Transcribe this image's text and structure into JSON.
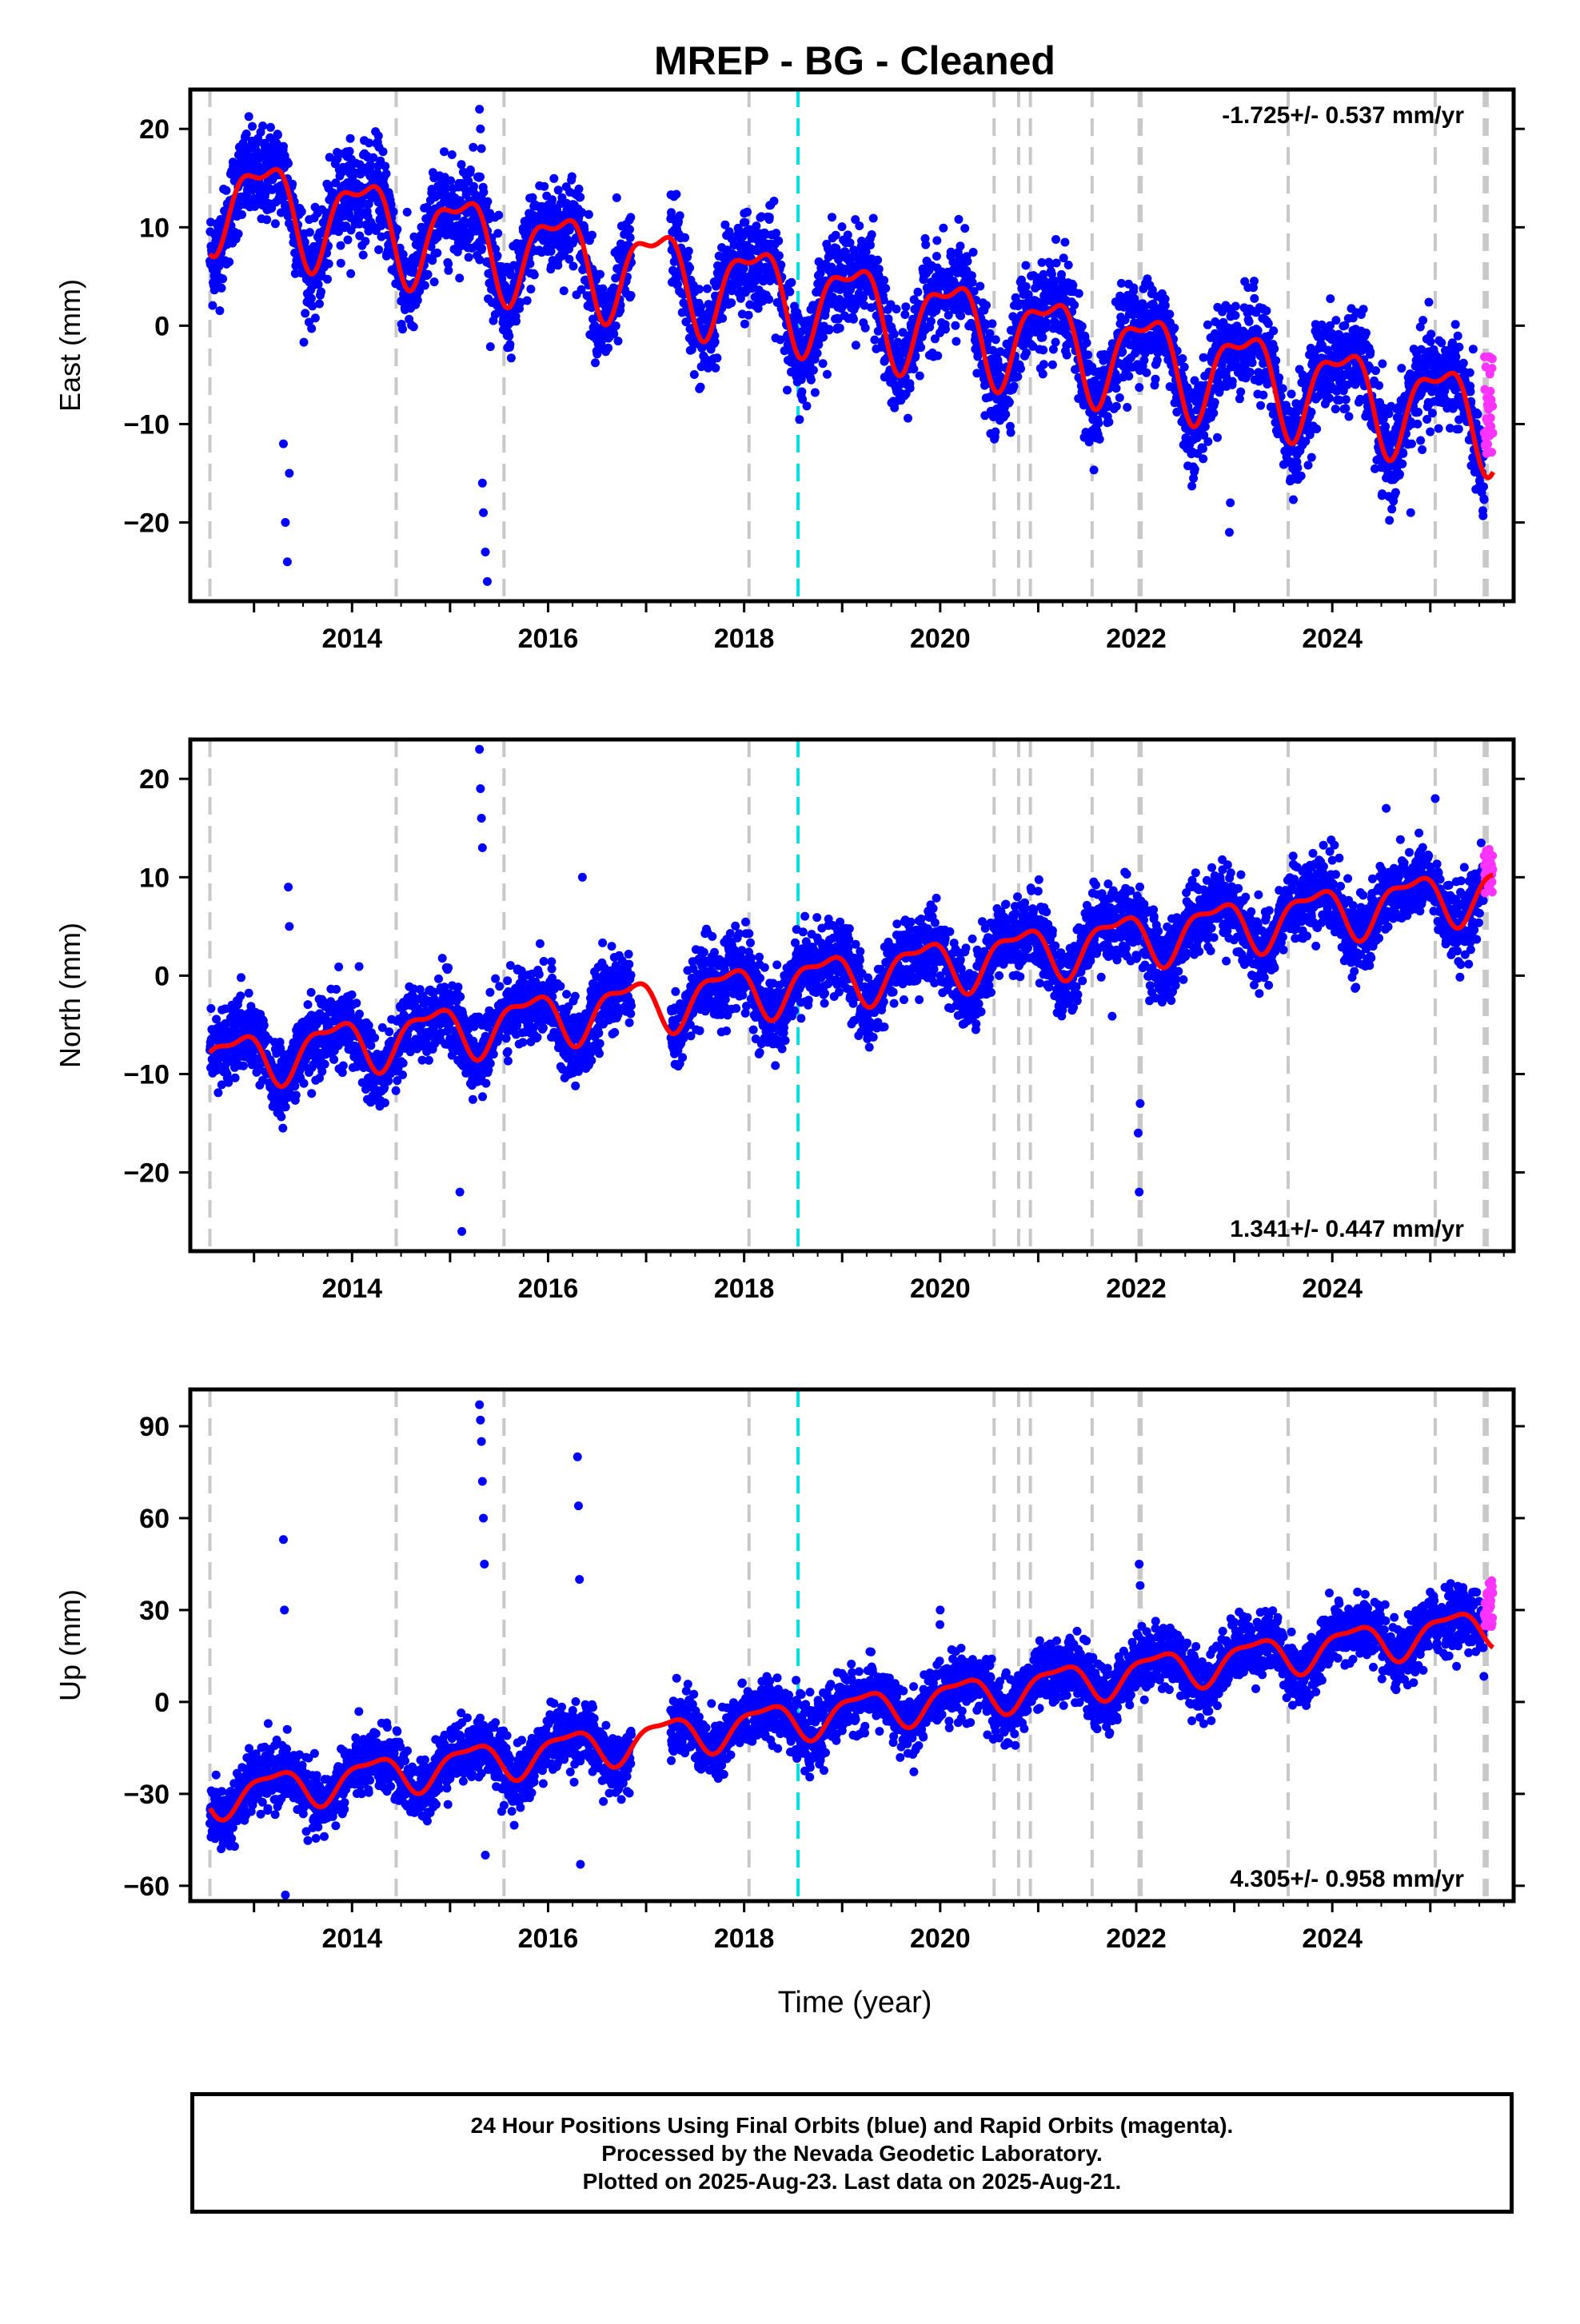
{
  "title": "MREP  - BG - Cleaned",
  "xlabel": "Time (year)",
  "x_ticks": [
    "2014",
    "2016",
    "2018",
    "2020",
    "2022",
    "2024"
  ],
  "footer": {
    "line1": "24 Hour Positions Using Final Orbits (blue) and Rapid Orbits (magenta).",
    "line2": "Processed by the Nevada Geodetic Laboratory.",
    "line3": "Plotted on 2025-Aug-23. Last data on 2025-Aug-21."
  },
  "colors": {
    "final_points": "#0000ff",
    "rapid_points": "#ff33ff",
    "model": "#ff0000",
    "equipment_change": "#c8c8c8",
    "earthquake": "#00e0e0"
  },
  "chart_data": [
    {
      "type": "scatter",
      "name": "East",
      "ylabel": "East (mm)",
      "xlim": [
        2012.35,
        2025.85
      ],
      "ylim": [
        -28,
        24
      ],
      "yticks": [
        20,
        10,
        0,
        -10,
        -20
      ],
      "rate_text": "-1.725+/- 0.537 mm/yr",
      "rate_position": "top-right",
      "grid": false,
      "rate": -1.725,
      "offset": 2.0,
      "amp1": 4.5,
      "phase1": 0.15,
      "amp2": 1.8,
      "phase2": 0.3,
      "noise": 2.4,
      "outliers": [
        {
          "x": 2015.3,
          "y": 22
        },
        {
          "x": 2015.31,
          "y": 20
        },
        {
          "x": 2015.32,
          "y": 18
        },
        {
          "x": 2015.33,
          "y": -16
        },
        {
          "x": 2015.34,
          "y": -19
        },
        {
          "x": 2015.36,
          "y": -23
        },
        {
          "x": 2015.38,
          "y": -26
        },
        {
          "x": 2013.3,
          "y": -12
        },
        {
          "x": 2013.32,
          "y": -20
        },
        {
          "x": 2013.34,
          "y": -24
        },
        {
          "x": 2013.36,
          "y": -15
        },
        {
          "x": 2013.0,
          "y": 16
        },
        {
          "x": 2016.7,
          "y": 13
        },
        {
          "x": 2022.95,
          "y": -21
        },
        {
          "x": 2022.96,
          "y": -18
        },
        {
          "x": 2024.8,
          "y": -19
        }
      ],
      "rapid": {
        "x_start": 2025.55,
        "x_end": 2025.64,
        "y_min": -13,
        "y_max": -3
      }
    },
    {
      "type": "scatter",
      "name": "North",
      "ylabel": "North (mm)",
      "xlim": [
        2012.35,
        2025.85
      ],
      "ylim": [
        -28,
        24
      ],
      "yticks": [
        20,
        10,
        0,
        -10,
        -20
      ],
      "rate_text": "1.341+/- 0.447 mm/yr",
      "rate_position": "bottom-right",
      "grid": false,
      "rate": 1.341,
      "offset": 0.0,
      "amp1": 2.5,
      "phase1": 0.45,
      "amp2": 1.0,
      "phase2": 0.1,
      "noise": 1.9,
      "outliers": [
        {
          "x": 2015.3,
          "y": 23
        },
        {
          "x": 2015.31,
          "y": 19
        },
        {
          "x": 2015.32,
          "y": 16
        },
        {
          "x": 2015.33,
          "y": 13
        },
        {
          "x": 2015.1,
          "y": -22
        },
        {
          "x": 2015.12,
          "y": -26
        },
        {
          "x": 2013.35,
          "y": 9
        },
        {
          "x": 2013.36,
          "y": 5
        },
        {
          "x": 2016.35,
          "y": 10
        },
        {
          "x": 2022.02,
          "y": -16
        },
        {
          "x": 2022.03,
          "y": -22
        },
        {
          "x": 2022.04,
          "y": -13
        },
        {
          "x": 2025.05,
          "y": 18
        },
        {
          "x": 2024.55,
          "y": 17
        }
      ],
      "rapid": {
        "x_start": 2025.55,
        "x_end": 2025.64,
        "y_min": 8,
        "y_max": 13
      }
    },
    {
      "type": "scatter",
      "name": "Up",
      "ylabel": "Up (mm)",
      "xlim": [
        2012.35,
        2025.85
      ],
      "ylim": [
        -65,
        102
      ],
      "yticks": [
        90,
        60,
        30,
        0,
        -30,
        -60
      ],
      "rate_text": "4.305+/- 0.958 mm/yr",
      "rate_position": "bottom-right",
      "grid": false,
      "rate": 4.305,
      "offset": -3.0,
      "amp1": 6.0,
      "phase1": 0.05,
      "amp2": 2.0,
      "phase2": 0.2,
      "noise": 5.0,
      "outliers": [
        {
          "x": 2015.3,
          "y": 97
        },
        {
          "x": 2015.31,
          "y": 92
        },
        {
          "x": 2015.32,
          "y": 85
        },
        {
          "x": 2015.33,
          "y": 72
        },
        {
          "x": 2015.34,
          "y": 60
        },
        {
          "x": 2015.35,
          "y": 45
        },
        {
          "x": 2015.36,
          "y": -50
        },
        {
          "x": 2016.3,
          "y": 80
        },
        {
          "x": 2016.31,
          "y": 64
        },
        {
          "x": 2016.32,
          "y": 40
        },
        {
          "x": 2016.33,
          "y": -53
        },
        {
          "x": 2013.3,
          "y": 53
        },
        {
          "x": 2013.31,
          "y": 30
        },
        {
          "x": 2013.32,
          "y": -63
        },
        {
          "x": 2022.03,
          "y": 45
        },
        {
          "x": 2022.04,
          "y": 38
        },
        {
          "x": 2020.0,
          "y": 30
        }
      ],
      "rapid": {
        "x_start": 2025.55,
        "x_end": 2025.64,
        "y_min": 24,
        "y_max": 40
      }
    }
  ],
  "equipment_changes": [
    2012.55,
    2014.45,
    2015.55,
    2018.05,
    2020.55,
    2020.8,
    2020.92,
    2021.55,
    2022.03,
    2022.05,
    2023.55,
    2025.05,
    2025.55,
    2025.58
  ],
  "earthquakes": [
    2018.55
  ],
  "data_gaps": [
    [
      2016.85,
      2017.25
    ]
  ]
}
